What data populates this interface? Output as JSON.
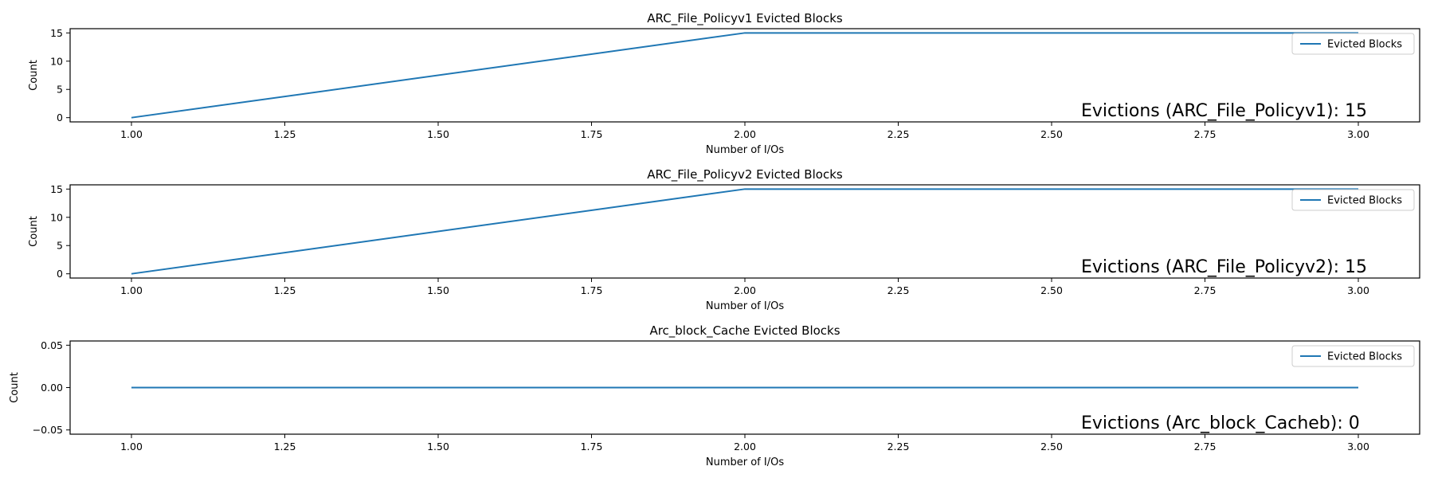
{
  "chart_data": [
    {
      "type": "line",
      "title": "ARC_File_Policyv1 Evicted Blocks",
      "xlabel": "Number of I/Os",
      "ylabel": "Count",
      "x": [
        1,
        2,
        3
      ],
      "series": [
        {
          "name": "Evicted Blocks",
          "values": [
            0,
            15,
            15
          ],
          "color": "#1f77b4"
        }
      ],
      "xlim": [
        0.9,
        3.1
      ],
      "ylim": [
        -0.75,
        15.75
      ],
      "xticks": [
        "1.00",
        "1.25",
        "1.50",
        "1.75",
        "2.00",
        "2.25",
        "2.50",
        "2.75",
        "3.00"
      ],
      "yticks": [
        "0",
        "5",
        "10",
        "15"
      ],
      "annotation": "Evictions (ARC_File_Policyv1): 15",
      "legend_position": "top-right",
      "grid": false
    },
    {
      "type": "line",
      "title": "ARC_File_Policyv2 Evicted Blocks",
      "xlabel": "Number of I/Os",
      "ylabel": "Count",
      "x": [
        1,
        2,
        3
      ],
      "series": [
        {
          "name": "Evicted Blocks",
          "values": [
            0,
            15,
            15
          ],
          "color": "#1f77b4"
        }
      ],
      "xlim": [
        0.9,
        3.1
      ],
      "ylim": [
        -0.75,
        15.75
      ],
      "xticks": [
        "1.00",
        "1.25",
        "1.50",
        "1.75",
        "2.00",
        "2.25",
        "2.50",
        "2.75",
        "3.00"
      ],
      "yticks": [
        "0",
        "5",
        "10",
        "15"
      ],
      "annotation": "Evictions (ARC_File_Policyv2): 15",
      "legend_position": "top-right",
      "grid": false
    },
    {
      "type": "line",
      "title": "Arc_block_Cache Evicted Blocks",
      "xlabel": "Number of I/Os",
      "ylabel": "Count",
      "x": [
        1,
        2,
        3
      ],
      "series": [
        {
          "name": "Evicted Blocks",
          "values": [
            0,
            0,
            0
          ],
          "color": "#1f77b4"
        }
      ],
      "xlim": [
        0.9,
        3.1
      ],
      "ylim": [
        -0.055,
        0.055
      ],
      "xticks": [
        "1.00",
        "1.25",
        "1.50",
        "1.75",
        "2.00",
        "2.25",
        "2.50",
        "2.75",
        "3.00"
      ],
      "yticks": [
        "−0.05",
        "0.00",
        "0.05"
      ],
      "annotation": "Evictions (Arc_block_Cacheb): 0",
      "legend_position": "top-right",
      "grid": false
    }
  ]
}
